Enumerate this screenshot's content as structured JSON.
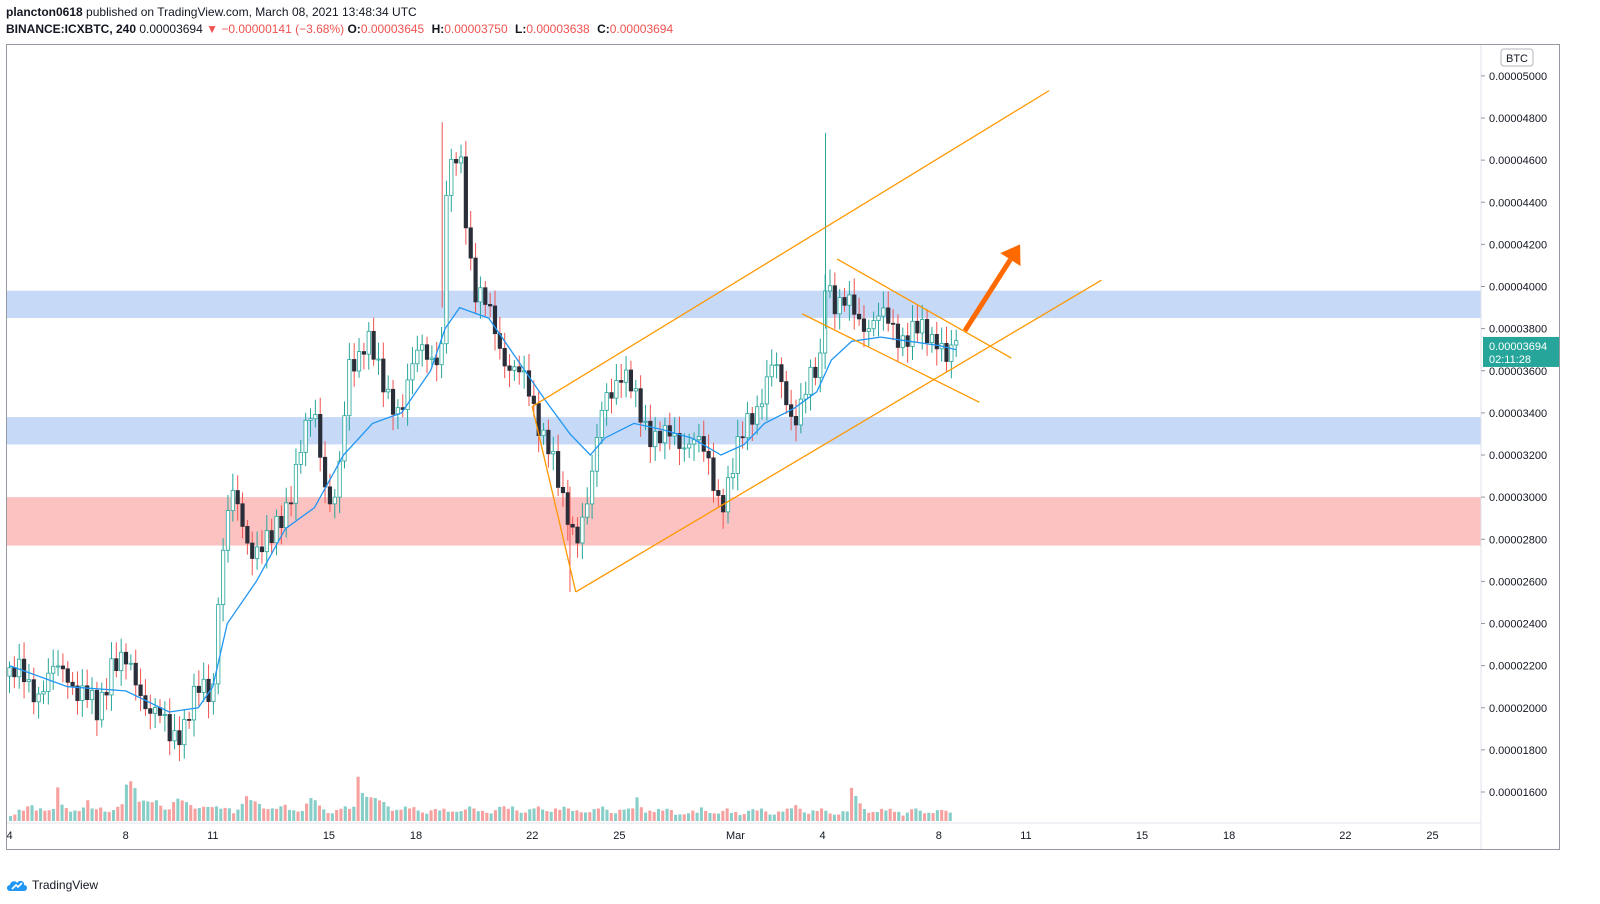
{
  "header": {
    "author": "plancton0618",
    "published_text": "published on TradingView.com, March 08, 2021 13:48:34 UTC",
    "symbol_line": "BINANCE:ICXBTC, 240",
    "last_price": "0.00003694",
    "change_arrow": "▼",
    "change": "−0.00000141 (−3.68%)",
    "open_label": "O:",
    "open": "0.00003645",
    "high_label": "H:",
    "high": "0.00003750",
    "low_label": "L:",
    "low": "0.00003638",
    "close_label": "C:",
    "close": "0.00003694"
  },
  "footer": {
    "brand": "TradingView"
  },
  "colors": {
    "up": "#26a69a",
    "down": "#ef5350",
    "ma": "#2196f3",
    "channel": "#ff9800",
    "zone_blue": "#b3cdf5",
    "zone_red": "#fbadad",
    "price_tag": "#26a69a"
  },
  "chart_data": {
    "type": "candlestick",
    "currency_label": "BTC",
    "y_ticks": [
      "0.00005000",
      "0.00004800",
      "0.00004600",
      "0.00004400",
      "0.00004200",
      "0.00004000",
      "0.00003800",
      "0.00003600",
      "0.00003400",
      "0.00003200",
      "0.00003000",
      "0.00002800",
      "0.00002600",
      "0.00002400",
      "0.00002200",
      "0.00002000",
      "0.00001800",
      "0.00001600"
    ],
    "y_tick_values": [
      5.0,
      4.8,
      4.6,
      4.4,
      4.2,
      4.0,
      3.8,
      3.6,
      3.4,
      3.2,
      3.0,
      2.8,
      2.6,
      2.4,
      2.2,
      2.0,
      1.8,
      1.6
    ],
    "y_unit_scale": "1e-5 BTC",
    "x_ticks": [
      {
        "label": "4",
        "day": 4
      },
      {
        "label": "8",
        "day": 8
      },
      {
        "label": "11",
        "day": 11
      },
      {
        "label": "15",
        "day": 15
      },
      {
        "label": "18",
        "day": 18
      },
      {
        "label": "22",
        "day": 22
      },
      {
        "label": "25",
        "day": 25
      },
      {
        "label": "Mar",
        "day": 29
      },
      {
        "label": "4",
        "day": 32
      },
      {
        "label": "8",
        "day": 36
      },
      {
        "label": "11",
        "day": 39
      },
      {
        "label": "15",
        "day": 43
      },
      {
        "label": "18",
        "day": 46
      },
      {
        "label": "22",
        "day": 50
      },
      {
        "label": "25",
        "day": 53
      }
    ],
    "x_axis_note": "day index counted from Feb 1 (Feb 4 = 4, Mar 1 = 29, Mar 4 = 32)",
    "current_price": {
      "value": 3.694,
      "label": "0.00003694",
      "countdown": "02:11:28"
    },
    "price_path": [
      [
        4.0,
        2.15
      ],
      [
        5.0,
        2.1
      ],
      [
        6.0,
        2.18
      ],
      [
        7.0,
        1.95
      ],
      [
        7.5,
        2.25
      ],
      [
        8.5,
        2.1
      ],
      [
        9.5,
        1.85
      ],
      [
        10.5,
        2.05
      ],
      [
        11.0,
        2.08
      ],
      [
        11.2,
        2.6
      ],
      [
        11.6,
        3.0
      ],
      [
        12.2,
        2.8
      ],
      [
        13.0,
        2.75
      ],
      [
        14.0,
        3.2
      ],
      [
        14.5,
        3.4
      ],
      [
        15.0,
        3.0
      ],
      [
        15.3,
        3.0
      ],
      [
        15.7,
        3.6
      ],
      [
        16.3,
        3.8
      ],
      [
        16.8,
        3.5
      ],
      [
        17.5,
        3.45
      ],
      [
        18.2,
        3.7
      ],
      [
        18.9,
        3.7
      ],
      [
        19.0,
        4.4
      ],
      [
        19.5,
        4.65
      ],
      [
        20.0,
        4.0
      ],
      [
        20.5,
        3.85
      ],
      [
        21.0,
        3.7
      ],
      [
        22.0,
        3.45
      ],
      [
        22.5,
        3.3
      ],
      [
        23.0,
        2.95
      ],
      [
        23.5,
        2.85
      ],
      [
        24.0,
        3.0
      ],
      [
        24.5,
        3.5
      ],
      [
        25.0,
        3.6
      ],
      [
        25.5,
        3.45
      ],
      [
        26.5,
        3.25
      ],
      [
        27.5,
        3.3
      ],
      [
        28.5,
        3.0
      ],
      [
        29.0,
        3.15
      ],
      [
        29.5,
        3.4
      ],
      [
        30.3,
        3.6
      ],
      [
        31.0,
        3.4
      ],
      [
        31.5,
        3.5
      ],
      [
        31.9,
        3.6
      ],
      [
        32.1,
        4.1
      ],
      [
        32.5,
        3.9
      ],
      [
        33.5,
        3.85
      ],
      [
        34.5,
        3.8
      ],
      [
        35.5,
        3.75
      ],
      [
        36.0,
        3.8
      ],
      [
        36.3,
        3.64
      ],
      [
        36.6,
        3.69
      ]
    ],
    "ma_path": [
      [
        4.0,
        2.2
      ],
      [
        6.0,
        2.1
      ],
      [
        8.0,
        2.08
      ],
      [
        9.5,
        1.98
      ],
      [
        10.5,
        2.0
      ],
      [
        11.0,
        2.1
      ],
      [
        11.5,
        2.4
      ],
      [
        12.5,
        2.6
      ],
      [
        13.5,
        2.85
      ],
      [
        14.5,
        2.95
      ],
      [
        15.5,
        3.2
      ],
      [
        16.5,
        3.35
      ],
      [
        17.5,
        3.4
      ],
      [
        18.5,
        3.6
      ],
      [
        19.0,
        3.8
      ],
      [
        19.5,
        3.9
      ],
      [
        20.5,
        3.85
      ],
      [
        21.5,
        3.65
      ],
      [
        22.5,
        3.45
      ],
      [
        23.3,
        3.3
      ],
      [
        24.0,
        3.2
      ],
      [
        24.5,
        3.28
      ],
      [
        25.5,
        3.35
      ],
      [
        26.5,
        3.32
      ],
      [
        27.5,
        3.28
      ],
      [
        28.5,
        3.2
      ],
      [
        29.3,
        3.25
      ],
      [
        30.0,
        3.35
      ],
      [
        31.0,
        3.42
      ],
      [
        31.8,
        3.5
      ],
      [
        32.3,
        3.65
      ],
      [
        33.0,
        3.74
      ],
      [
        34.0,
        3.76
      ],
      [
        35.0,
        3.74
      ],
      [
        36.0,
        3.72
      ],
      [
        36.6,
        3.7
      ]
    ],
    "volume_profile": [
      0.2,
      0.3,
      0.25,
      0.35,
      0.4,
      0.3,
      0.45,
      0.35,
      0.3,
      0.8,
      0.4,
      0.35,
      0.3,
      0.4,
      0.3,
      0.35,
      0.5,
      0.3,
      0.4,
      0.35,
      0.3,
      0.3,
      0.35,
      0.4,
      0.9,
      1.1,
      0.7,
      0.6,
      0.5,
      0.45,
      0.5,
      0.4,
      0.35,
      0.45,
      0.6,
      0.5,
      0.45,
      0.4,
      0.35,
      0.45,
      0.5,
      0.4,
      0.35,
      0.3,
      0.35,
      0.4,
      0.3,
      0.35,
      0.45,
      0.6,
      0.5,
      0.5,
      0.45,
      0.4,
      0.35,
      0.3,
      0.35,
      0.4,
      0.3,
      0.35,
      0.3,
      0.45,
      0.55,
      0.5,
      0.4,
      0.35,
      0.3,
      0.25,
      0.3,
      0.35,
      0.3,
      0.4,
      1.5,
      1.0,
      0.7,
      0.6,
      0.55,
      0.5,
      0.45,
      0.4,
      0.35,
      0.3,
      0.35,
      0.3,
      0.35,
      0.3,
      0.25,
      0.3,
      0.3,
      0.25,
      0.3,
      0.25,
      0.3,
      0.35,
      0.3,
      0.35,
      0.3,
      0.25,
      0.3,
      0.3,
      0.25,
      0.3,
      0.35,
      0.3,
      0.4,
      0.35,
      0.3,
      0.25,
      0.3,
      0.3,
      0.35,
      0.3,
      0.35,
      0.4,
      0.3,
      0.35,
      0.3,
      0.25,
      0.3,
      0.3,
      0.25,
      0.3,
      0.3,
      0.35,
      0.3,
      0.25,
      0.3,
      0.35,
      0.3,
      0.3,
      0.6,
      0.4,
      0.3,
      0.35,
      0.25,
      0.3,
      0.25,
      0.3,
      0.2,
      0.25,
      0.2,
      0.2,
      0.25,
      0.2,
      0.35,
      0.3,
      0.25,
      0.2,
      0.25,
      0.3,
      0.2,
      0.25,
      0.2,
      0.25,
      0.3,
      0.25,
      0.3,
      0.25,
      0.2,
      0.25,
      0.3,
      0.25,
      0.3,
      0.4,
      0.35,
      0.3,
      0.25,
      0.3,
      0.25,
      0.3,
      0.25,
      0.2,
      0.25,
      0.3,
      0.25,
      0.8,
      0.6,
      0.45,
      0.35,
      0.3,
      0.25,
      0.3,
      0.25,
      0.3,
      0.25,
      0.3,
      0.2,
      0.25,
      0.3,
      0.25,
      0.2,
      0.25,
      0.3,
      0.35,
      0.3,
      0.25,
      0.2
    ],
    "zones": [
      {
        "name": "resistance-zone",
        "color": "blue",
        "from": 3.85,
        "to": 3.98
      },
      {
        "name": "support-zone",
        "color": "blue",
        "from": 3.25,
        "to": 3.38
      },
      {
        "name": "demand-zone",
        "color": "red",
        "from": 2.77,
        "to": 3.0
      }
    ],
    "trendlines": [
      {
        "name": "ascending-channel-upper",
        "from": [
          22.0,
          3.43
        ],
        "to": [
          39.8,
          4.93
        ]
      },
      {
        "name": "ascending-channel-lower",
        "from": [
          23.5,
          2.55
        ],
        "to": [
          41.6,
          4.03
        ]
      },
      {
        "name": "ascending-channel-left",
        "from": [
          22.0,
          3.43
        ],
        "to": [
          23.5,
          2.55
        ]
      },
      {
        "name": "flag-upper",
        "from": [
          32.5,
          4.13
        ],
        "to": [
          38.5,
          3.66
        ]
      },
      {
        "name": "flag-lower",
        "from": [
          31.3,
          3.87
        ],
        "to": [
          37.4,
          3.45
        ]
      }
    ],
    "arrow": {
      "from": [
        36.9,
        3.79
      ],
      "to": [
        38.8,
        4.2
      ]
    }
  }
}
